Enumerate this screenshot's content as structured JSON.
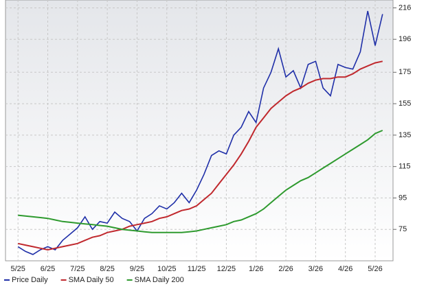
{
  "chart_data": {
    "type": "line",
    "x": [
      0,
      0.25,
      0.5,
      0.75,
      1,
      1.25,
      1.5,
      1.75,
      2,
      2.25,
      2.5,
      2.75,
      3,
      3.25,
      3.5,
      3.75,
      4,
      4.25,
      4.5,
      4.75,
      5,
      5.25,
      5.5,
      5.75,
      6,
      6.25,
      6.5,
      6.75,
      7,
      7.25,
      7.5,
      7.75,
      8,
      8.25,
      8.5,
      8.75,
      9,
      9.25,
      9.5,
      9.75,
      10,
      10.25,
      10.5,
      10.75,
      11,
      11.25,
      11.5,
      11.75,
      12,
      12.25
    ],
    "series": [
      {
        "name": "Price Daily",
        "color": "#1f2fa8",
        "values": [
          64,
          61,
          59,
          62,
          64,
          62,
          68,
          72,
          76,
          83,
          75,
          80,
          79,
          86,
          82,
          80,
          74,
          82,
          85,
          90,
          88,
          92,
          98,
          92,
          100,
          110,
          122,
          125,
          123,
          135,
          140,
          150,
          143,
          165,
          175,
          190,
          172,
          176,
          165,
          180,
          182,
          165,
          160,
          180,
          178,
          177,
          188,
          214,
          192,
          212
        ]
      },
      {
        "name": "SMA Daily 50",
        "color": "#c0282d",
        "values": [
          66,
          65,
          64,
          63,
          62,
          63,
          64,
          65,
          66,
          68,
          70,
          71,
          73,
          74,
          75,
          77,
          78,
          79,
          80,
          82,
          83,
          85,
          87,
          88,
          90,
          94,
          98,
          104,
          110,
          116,
          123,
          131,
          140,
          146,
          152,
          156,
          160,
          163,
          165,
          168,
          170,
          171,
          171,
          172,
          172,
          174,
          177,
          179,
          181,
          182
        ]
      },
      {
        "name": "SMA Daily 200",
        "color": "#2e9a2e",
        "values": [
          84,
          83.5,
          83,
          82.5,
          82,
          81,
          80,
          79.5,
          79,
          78.5,
          78,
          77.5,
          77,
          76,
          75,
          74.5,
          74,
          73.5,
          73,
          73,
          73,
          73,
          73,
          73.5,
          74,
          75,
          76,
          77,
          78,
          80,
          81,
          83,
          85,
          88,
          92,
          96,
          100,
          103,
          106,
          108,
          111,
          114,
          117,
          120,
          123,
          126,
          129,
          132,
          136,
          138
        ]
      }
    ],
    "xlim": [
      -0.42,
      12.6
    ],
    "xticks": [
      {
        "value": 0,
        "label": "5/25"
      },
      {
        "value": 1,
        "label": "6/25"
      },
      {
        "value": 2,
        "label": "7/25"
      },
      {
        "value": 3,
        "label": "8/25"
      },
      {
        "value": 4,
        "label": "9/25"
      },
      {
        "value": 5,
        "label": "10/25"
      },
      {
        "value": 6,
        "label": "11/25"
      },
      {
        "value": 7,
        "label": "12/25"
      },
      {
        "value": 8,
        "label": "1/26"
      },
      {
        "value": 9,
        "label": "2/26"
      },
      {
        "value": 10,
        "label": "3/26"
      },
      {
        "value": 11,
        "label": "4/26"
      },
      {
        "value": 12,
        "label": "5/26"
      }
    ],
    "ylim": [
      55,
      221
    ],
    "yticks": [
      75,
      95,
      115,
      135,
      155,
      175,
      196,
      216
    ],
    "grid": true
  }
}
